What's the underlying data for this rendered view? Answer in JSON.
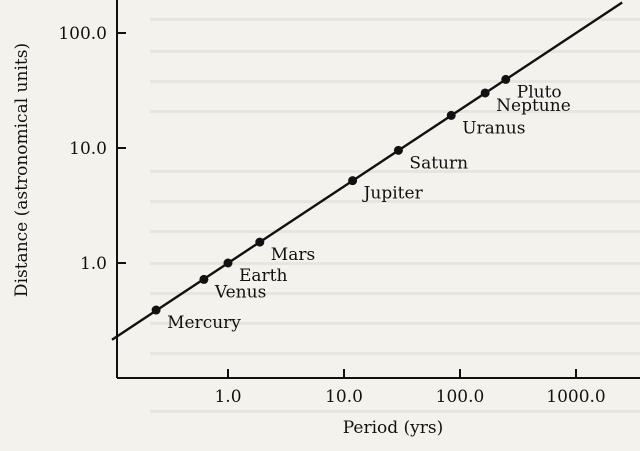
{
  "chart_data": {
    "type": "scatter",
    "title": "",
    "xlabel": "Period (yrs)",
    "ylabel": "Distance (astronomical units)",
    "x_scale": "log",
    "y_scale": "log",
    "xlim": [
      0.1,
      2500
    ],
    "ylim": [
      0.15,
      300
    ],
    "x_ticks": [
      1.0,
      10.0,
      100.0,
      1000.0
    ],
    "x_tick_labels": [
      "1.0",
      "10.0",
      "100.0",
      "1000.0"
    ],
    "y_ticks": [
      1.0,
      10.0,
      100.0
    ],
    "y_tick_labels": [
      "1.0",
      "10.0",
      "100.0"
    ],
    "grid": false,
    "legend": "none",
    "fit_line": {
      "x": [
        0.1,
        2500
      ],
      "y": [
        0.215,
        184
      ]
    },
    "points": [
      {
        "name": "Mercury",
        "x": 0.24,
        "y": 0.39
      },
      {
        "name": "Venus",
        "x": 0.62,
        "y": 0.72
      },
      {
        "name": "Earth",
        "x": 1.0,
        "y": 1.0
      },
      {
        "name": "Mars",
        "x": 1.88,
        "y": 1.52
      },
      {
        "name": "Jupiter",
        "x": 11.86,
        "y": 5.2
      },
      {
        "name": "Saturn",
        "x": 29.46,
        "y": 9.54
      },
      {
        "name": "Uranus",
        "x": 84.0,
        "y": 19.2
      },
      {
        "name": "Neptune",
        "x": 164.8,
        "y": 30.1
      },
      {
        "name": "Pluto",
        "x": 248.0,
        "y": 39.5
      }
    ],
    "colors": {
      "ink": "#111111",
      "background": "#f4f2ed"
    }
  }
}
